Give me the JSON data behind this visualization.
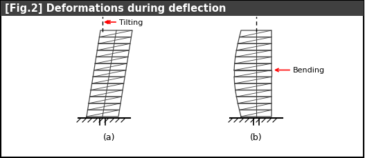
{
  "title": "[Fig.2] Deformations during deflection",
  "title_bg": "#404040",
  "title_color": "white",
  "title_fontsize": 10.5,
  "bg_color": "white",
  "border_color": "black",
  "label_a": "(a)",
  "label_b": "(b)",
  "label_tilting": "Tilting",
  "label_bending": "Bending",
  "arrow_color": "red",
  "coil_color": "#444444",
  "num_coils": 13,
  "fig_width": 5.27,
  "fig_height": 2.3,
  "dpi": 100
}
